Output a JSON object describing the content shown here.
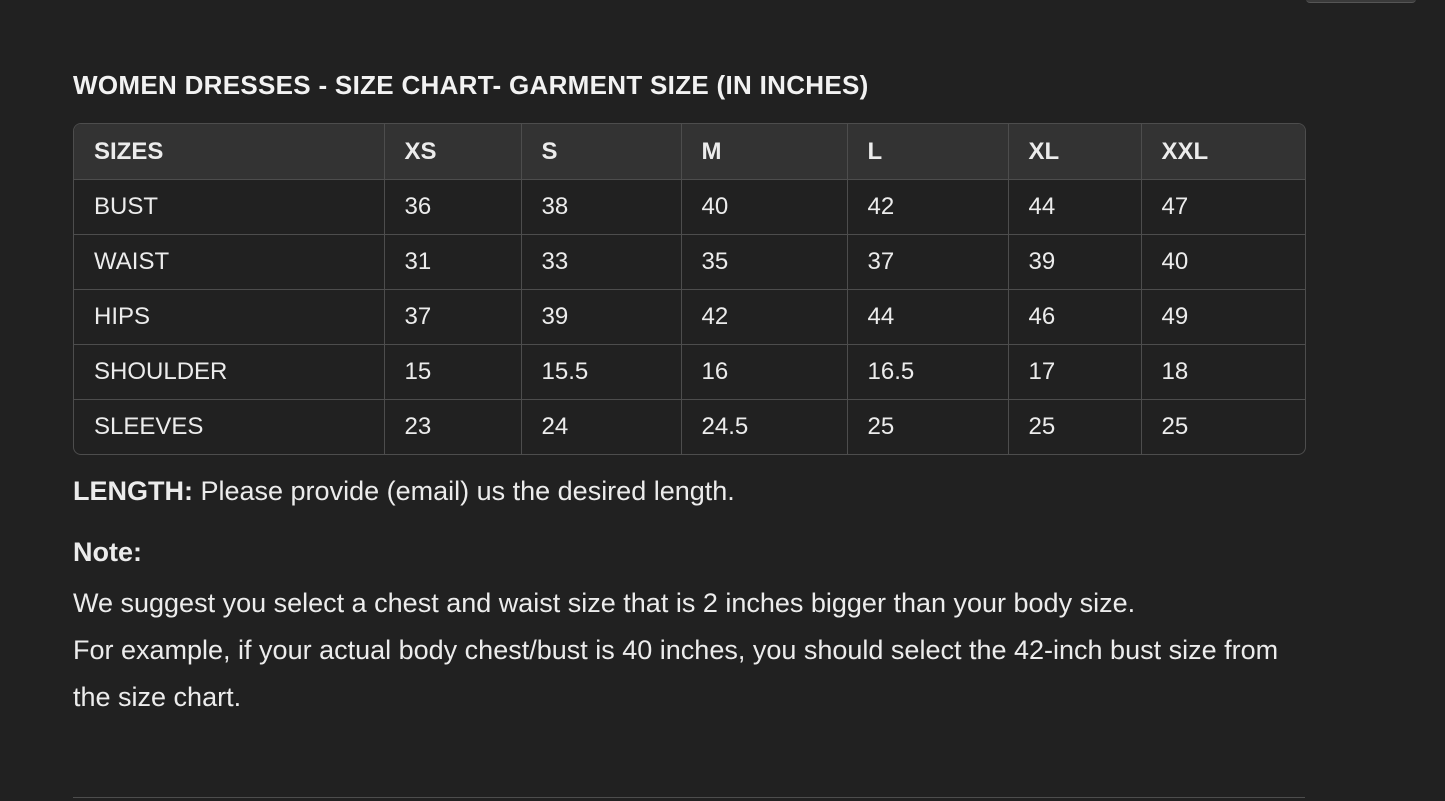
{
  "title": "WOMEN DRESSES - SIZE CHART- GARMENT SIZE (IN INCHES)",
  "table": {
    "headers": [
      "SIZES",
      "XS",
      "S",
      "M",
      "L",
      "XL",
      "XXL"
    ],
    "rows": [
      [
        "BUST",
        "36",
        "38",
        "40",
        "42",
        "44",
        "47"
      ],
      [
        "WAIST",
        "31",
        "33",
        "35",
        "37",
        "39",
        "40"
      ],
      [
        "HIPS",
        "37",
        "39",
        "42",
        "44",
        "46",
        "49"
      ],
      [
        "SHOULDER",
        "15",
        "15.5",
        "16",
        "16.5",
        "17",
        "18"
      ],
      [
        "SLEEVES",
        "23",
        "24",
        "24.5",
        "25",
        "25",
        "25"
      ]
    ]
  },
  "length": {
    "label": "LENGTH:",
    "text": " Please provide (email) us the desired length."
  },
  "note": {
    "label": "Note:",
    "line1": "We suggest you select a chest and waist size that is 2 inches bigger than your body size.",
    "line2": "For example, if your actual body chest/bust is 40 inches, you should select the 42-inch bust size from the size chart."
  }
}
